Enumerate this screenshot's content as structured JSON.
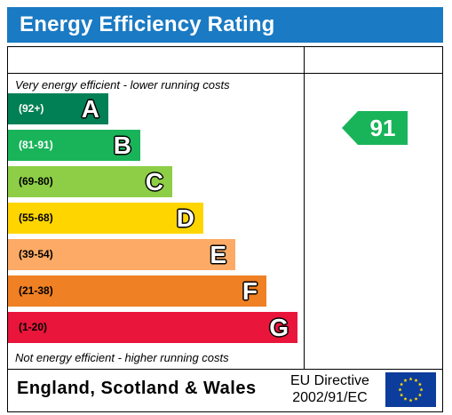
{
  "title": "Energy Efficiency Rating",
  "top_note": "Very energy efficient - lower running costs",
  "bottom_note": "Not energy efficient - higher running costs",
  "bands": [
    {
      "range": "(92+)",
      "letter": "A",
      "color": "#008054",
      "range_color": "#ffffff"
    },
    {
      "range": "(81-91)",
      "letter": "B",
      "color": "#19b459",
      "range_color": "#ffffff"
    },
    {
      "range": "(69-80)",
      "letter": "C",
      "color": "#8dce46",
      "range_color": "#000000"
    },
    {
      "range": "(55-68)",
      "letter": "D",
      "color": "#ffd500",
      "range_color": "#000000"
    },
    {
      "range": "(39-54)",
      "letter": "E",
      "color": "#fcaa65",
      "range_color": "#000000"
    },
    {
      "range": "(21-38)",
      "letter": "F",
      "color": "#ef8023",
      "range_color": "#000000"
    },
    {
      "range": "(1-20)",
      "letter": "G",
      "color": "#e9153b",
      "range_color": "#000000"
    }
  ],
  "current_rating": {
    "value": "91",
    "color": "#19b459"
  },
  "footer": {
    "region": "England, Scotland & Wales",
    "directive_line1": "EU Directive",
    "directive_line2": "2002/91/EC"
  }
}
